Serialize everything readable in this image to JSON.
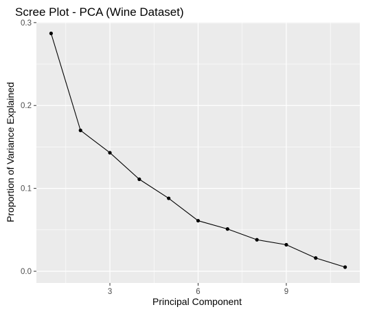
{
  "colors": {
    "panel_background": "#EBEBEB",
    "grid_major": "#FFFFFF",
    "line": "#000000",
    "point": "#000000",
    "tick_text": "#4D4D4D"
  },
  "chart_data": {
    "type": "line",
    "title": "Scree Plot - PCA (Wine Dataset)",
    "xlabel": "Principal Component",
    "ylabel": "Proportion of Variance Explained",
    "x": [
      1,
      2,
      3,
      4,
      5,
      6,
      7,
      8,
      9,
      10,
      11
    ],
    "series": [
      {
        "name": "",
        "values": [
          0.287,
          0.17,
          0.143,
          0.111,
          0.088,
          0.061,
          0.051,
          0.038,
          0.032,
          0.016,
          0.005
        ],
        "markers": true
      }
    ],
    "xlim": [
      0.5,
      11.5
    ],
    "ylim": [
      -0.0141,
      0.3007
    ],
    "xticks": [
      3,
      6,
      9
    ],
    "xtick_labels": [
      "3",
      "6",
      "9"
    ],
    "yticks": [
      0.0,
      0.1,
      0.2,
      0.3
    ],
    "ytick_labels": [
      "0.0",
      "0.1",
      "0.2",
      "0.3"
    ],
    "grid": true,
    "legend": "none"
  }
}
